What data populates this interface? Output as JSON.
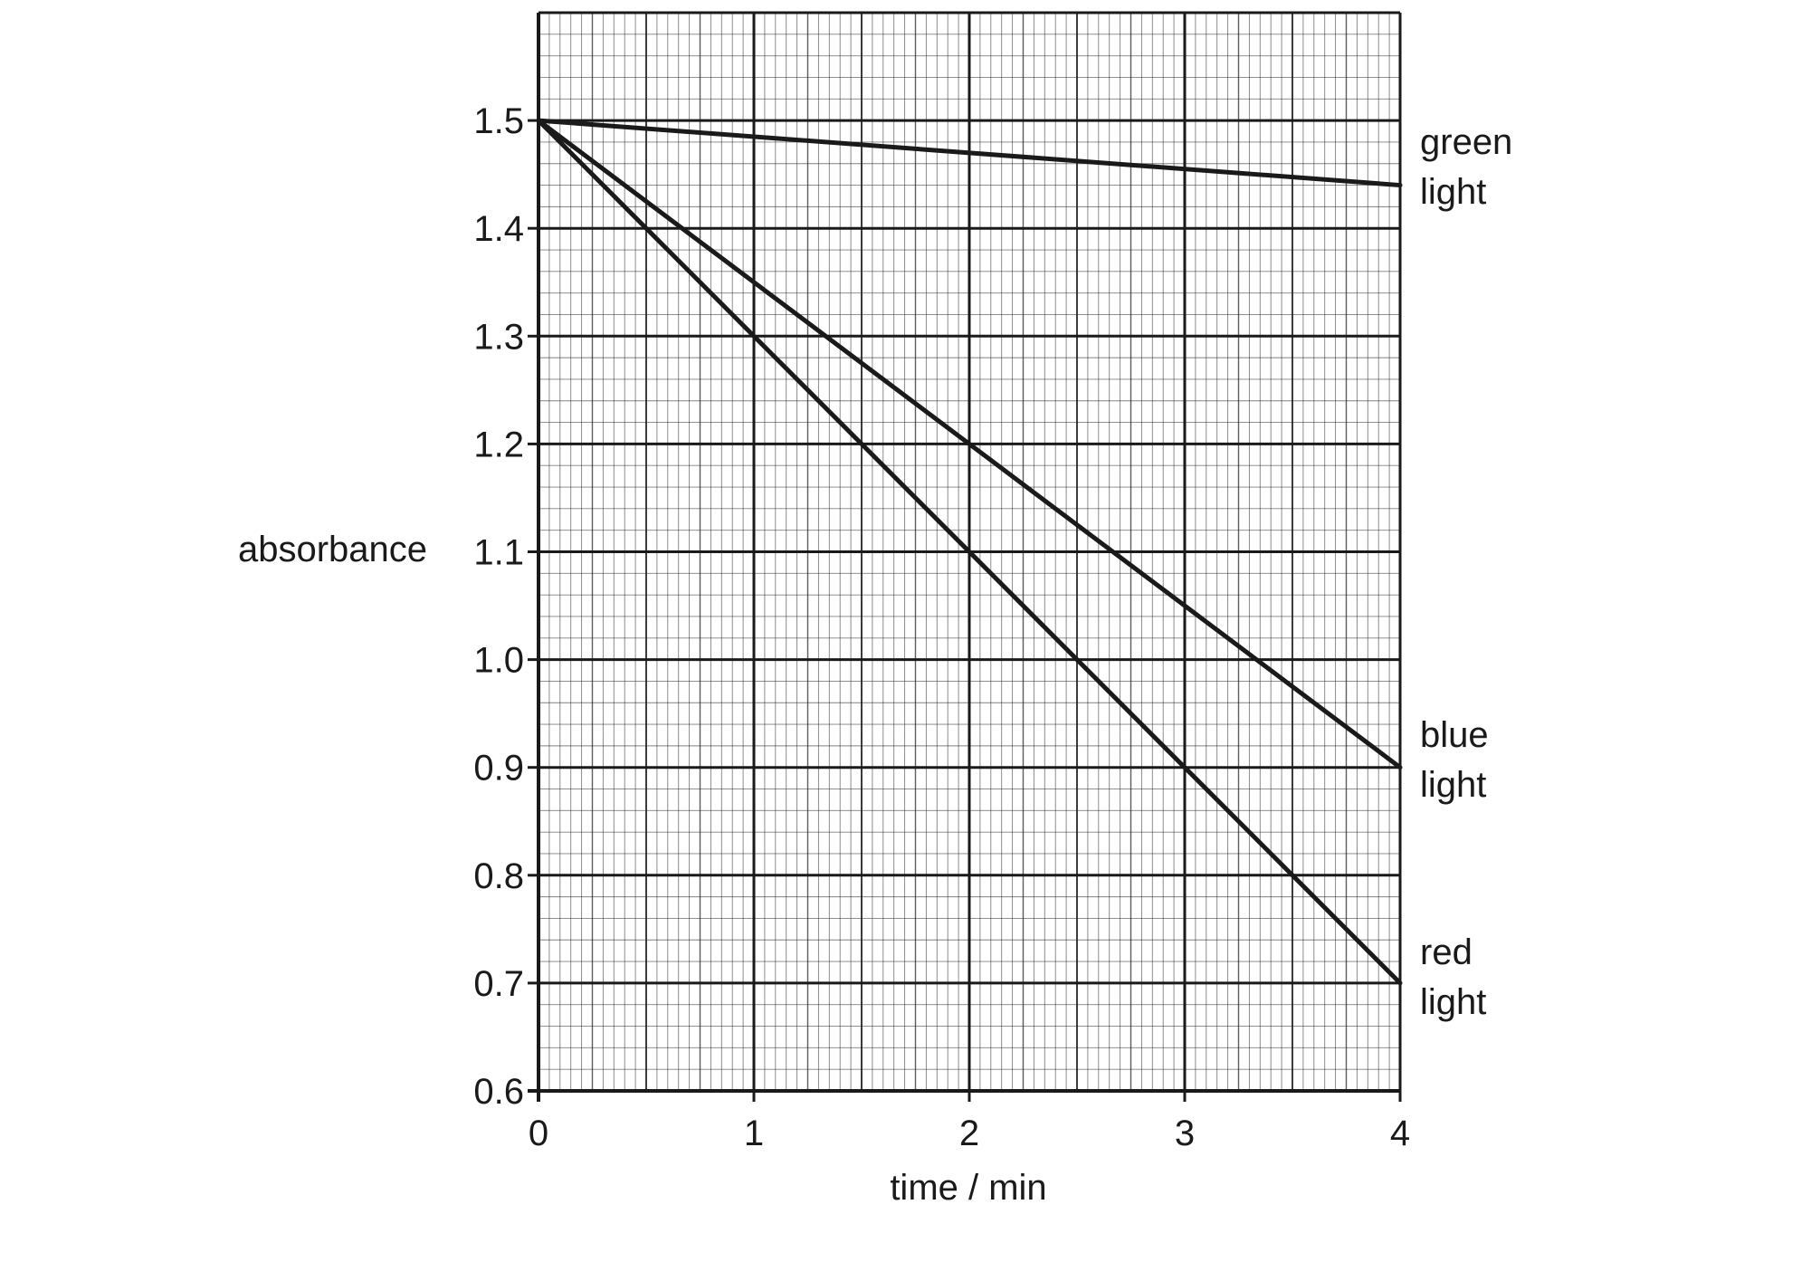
{
  "chart_data": {
    "type": "line",
    "title": "",
    "xlabel": "time / min",
    "ylabel": "absorbance",
    "xlim": [
      0,
      4
    ],
    "ylim": [
      0.6,
      1.6
    ],
    "x_ticks": [
      "0",
      "1",
      "2",
      "3",
      "4"
    ],
    "y_ticks": [
      "0.6",
      "0.7",
      "0.8",
      "0.9",
      "1.0",
      "1.1",
      "1.2",
      "1.3",
      "1.4",
      "1.5"
    ],
    "grid": true,
    "series": [
      {
        "name": "green light",
        "label_lines": [
          "green",
          "light"
        ],
        "x": [
          0,
          4
        ],
        "values": [
          1.5,
          1.44
        ]
      },
      {
        "name": "blue light",
        "label_lines": [
          "blue",
          "light"
        ],
        "x": [
          0,
          4
        ],
        "values": [
          1.5,
          0.9
        ]
      },
      {
        "name": "red light",
        "label_lines": [
          "red",
          "light"
        ],
        "x": [
          0,
          4
        ],
        "values": [
          1.5,
          0.7
        ]
      }
    ],
    "line_color": "#1a1a1a",
    "grid_color": "#1a1a1a"
  }
}
